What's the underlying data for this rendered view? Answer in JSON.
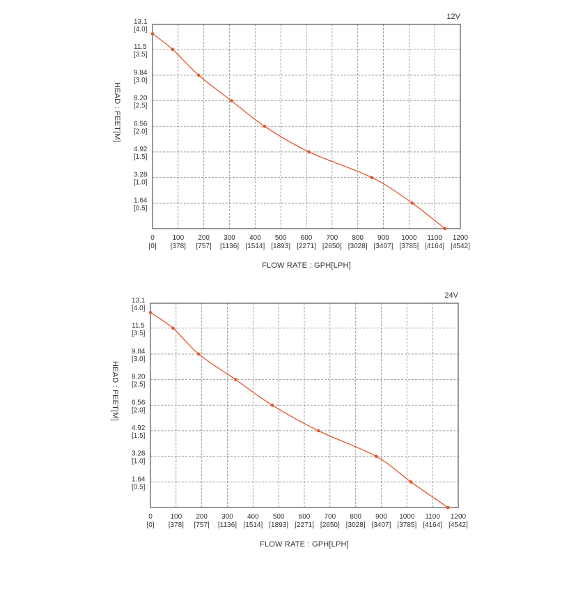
{
  "chart_data": [
    {
      "type": "line",
      "title": "12V",
      "xlabel": "FLOW RATE : GPH[LPH]",
      "ylabel": "HEAD : FEET[M]",
      "xlim": [
        0,
        1200
      ],
      "ylim": [
        0,
        13.1
      ],
      "grid": true,
      "x_ticks": [
        "0",
        "100",
        "200",
        "300",
        "400",
        "500",
        "600",
        "700",
        "800",
        "900",
        "1000",
        "1100",
        "1200"
      ],
      "x_ticks_sub": [
        "[0]",
        "[378]",
        "[757]",
        "[1136]",
        "[1514]",
        "[1893]",
        "[2271]",
        "[2650]",
        "[3028]",
        "[3407]",
        "[3785]",
        "[4164]",
        "[4542]"
      ],
      "y_ticks": [
        "13.1",
        "11.5",
        "9.84",
        "8.20",
        "6.56",
        "4.92",
        "3.28",
        "1.64"
      ],
      "y_ticks_sub": [
        "[4.0]",
        "[3.5]",
        "[3.0]",
        "[2.5]",
        "[2.0]",
        "[1.5]",
        "[1.0]",
        "[0.5]"
      ],
      "series": [
        {
          "color": "#e8552a",
          "x": [
            0,
            78,
            180,
            308,
            437,
            610,
            855,
            1012,
            1140
          ],
          "y": [
            12.5,
            11.5,
            9.84,
            8.2,
            6.56,
            4.92,
            3.28,
            1.64,
            0
          ]
        }
      ]
    },
    {
      "type": "line",
      "title": "24V",
      "xlabel": "FLOW RATE : GPH[LPH]",
      "ylabel": "HEAD : FEET[M]",
      "xlim": [
        0,
        1200
      ],
      "ylim": [
        0,
        13.1
      ],
      "grid": true,
      "x_ticks": [
        "0",
        "100",
        "200",
        "300",
        "400",
        "500",
        "600",
        "700",
        "800",
        "900",
        "1000",
        "1100",
        "1200"
      ],
      "x_ticks_sub": [
        "[0]",
        "[378]",
        "[757]",
        "[1136]",
        "[1514]",
        "[1893]",
        "[2271]",
        "[2650]",
        "[3028]",
        "[3407]",
        "[3785]",
        "[4164]",
        "[4542]"
      ],
      "y_ticks": [
        "13.1",
        "11.5",
        "9.84",
        "8.20",
        "6.56",
        "4.92",
        "3.28",
        "1.64"
      ],
      "y_ticks_sub": [
        "[4.0]",
        "[3.5]",
        "[3.0]",
        "[2.5]",
        "[2.0]",
        "[1.5]",
        "[1.0]",
        "[0.5]"
      ],
      "series": [
        {
          "color": "#e8552a",
          "x": [
            0,
            88,
            188,
            332,
            475,
            655,
            880,
            1015,
            1160
          ],
          "y": [
            12.5,
            11.5,
            9.84,
            8.2,
            6.56,
            4.92,
            3.28,
            1.64,
            0
          ]
        }
      ]
    }
  ]
}
